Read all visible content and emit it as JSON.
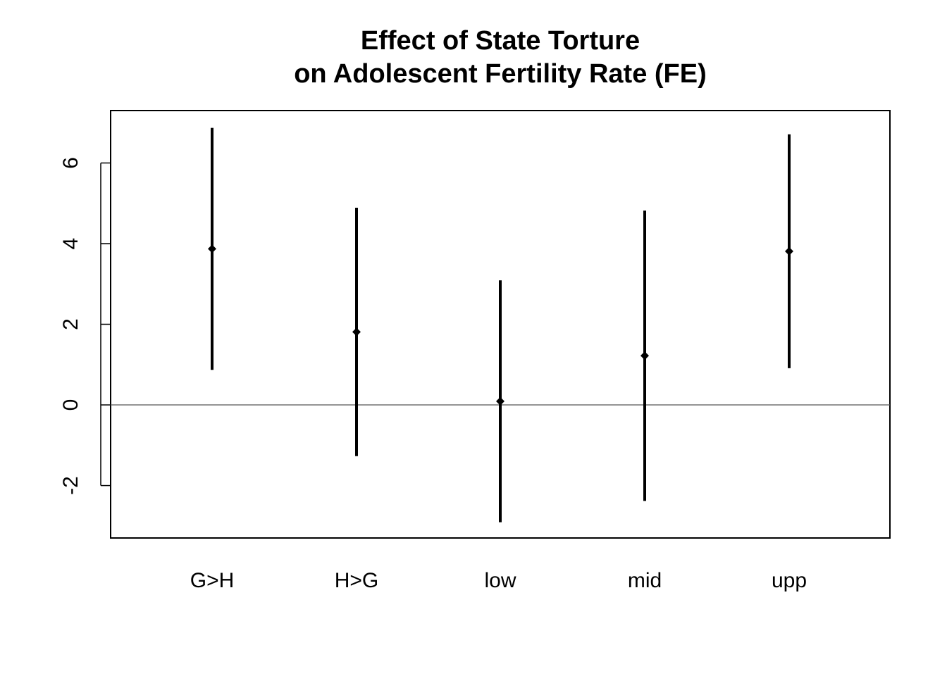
{
  "chart_data": {
    "type": "errorbar",
    "title_lines": [
      "Effect of State Torture",
      "on Adolescent Fertility Rate (FE)"
    ],
    "xlabel": "",
    "ylabel": "",
    "categories": [
      "G>H",
      "H>G",
      "low",
      "mid",
      "upp"
    ],
    "estimates": [
      3.87,
      1.81,
      0.09,
      1.22,
      3.81
    ],
    "lower": [
      0.87,
      -1.27,
      -2.91,
      -2.38,
      0.91
    ],
    "upper": [
      6.87,
      4.89,
      3.09,
      4.82,
      6.71
    ],
    "ylim": [
      -3.3,
      7.3
    ],
    "yticks": [
      -2,
      0,
      2,
      4,
      6
    ],
    "reference_line": 0,
    "grid": false,
    "legend": "none",
    "colors": {
      "marks": "#000000",
      "reference_line": "#555555",
      "frame": "#000000"
    }
  }
}
